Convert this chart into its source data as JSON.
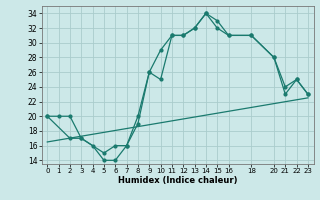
{
  "xlabel": "Humidex (Indice chaleur)",
  "bg_color": "#cce8e8",
  "grid_color": "#aacccc",
  "line_color": "#1a7a6e",
  "xlim": [
    -0.5,
    23.5
  ],
  "ylim": [
    13.5,
    35
  ],
  "xticks": [
    0,
    1,
    2,
    3,
    4,
    5,
    6,
    7,
    8,
    9,
    10,
    11,
    12,
    13,
    14,
    15,
    16,
    18,
    20,
    21,
    22,
    23
  ],
  "xtick_labels": [
    "0",
    "1",
    "2",
    "3",
    "4",
    "5",
    "6",
    "7",
    "8",
    "9",
    "10",
    "11",
    "12",
    "13",
    "14",
    "15",
    "16",
    "18",
    "20",
    "21",
    "22",
    "23"
  ],
  "yticks": [
    14,
    16,
    18,
    20,
    22,
    24,
    26,
    28,
    30,
    32,
    34
  ],
  "line1_x": [
    0,
    1,
    2,
    3,
    4,
    5,
    6,
    7,
    8,
    9,
    10,
    11,
    12,
    13,
    14,
    15,
    16,
    18,
    20,
    21,
    22,
    23
  ],
  "line1_y": [
    20,
    20,
    20,
    17,
    16,
    14,
    14,
    16,
    20,
    26,
    25,
    31,
    31,
    32,
    34,
    32,
    31,
    31,
    28,
    23,
    25,
    23
  ],
  "line2_x": [
    0,
    2,
    3,
    5,
    6,
    7,
    8,
    9,
    10,
    11,
    12,
    13,
    14,
    15,
    16,
    18,
    20,
    21,
    22,
    23
  ],
  "line2_y": [
    20,
    17,
    17,
    15,
    16,
    16,
    19,
    26,
    29,
    31,
    31,
    32,
    34,
    33,
    31,
    31,
    28,
    24,
    25,
    23
  ],
  "line3_x": [
    0,
    23
  ],
  "line3_y": [
    16.5,
    22.5
  ]
}
